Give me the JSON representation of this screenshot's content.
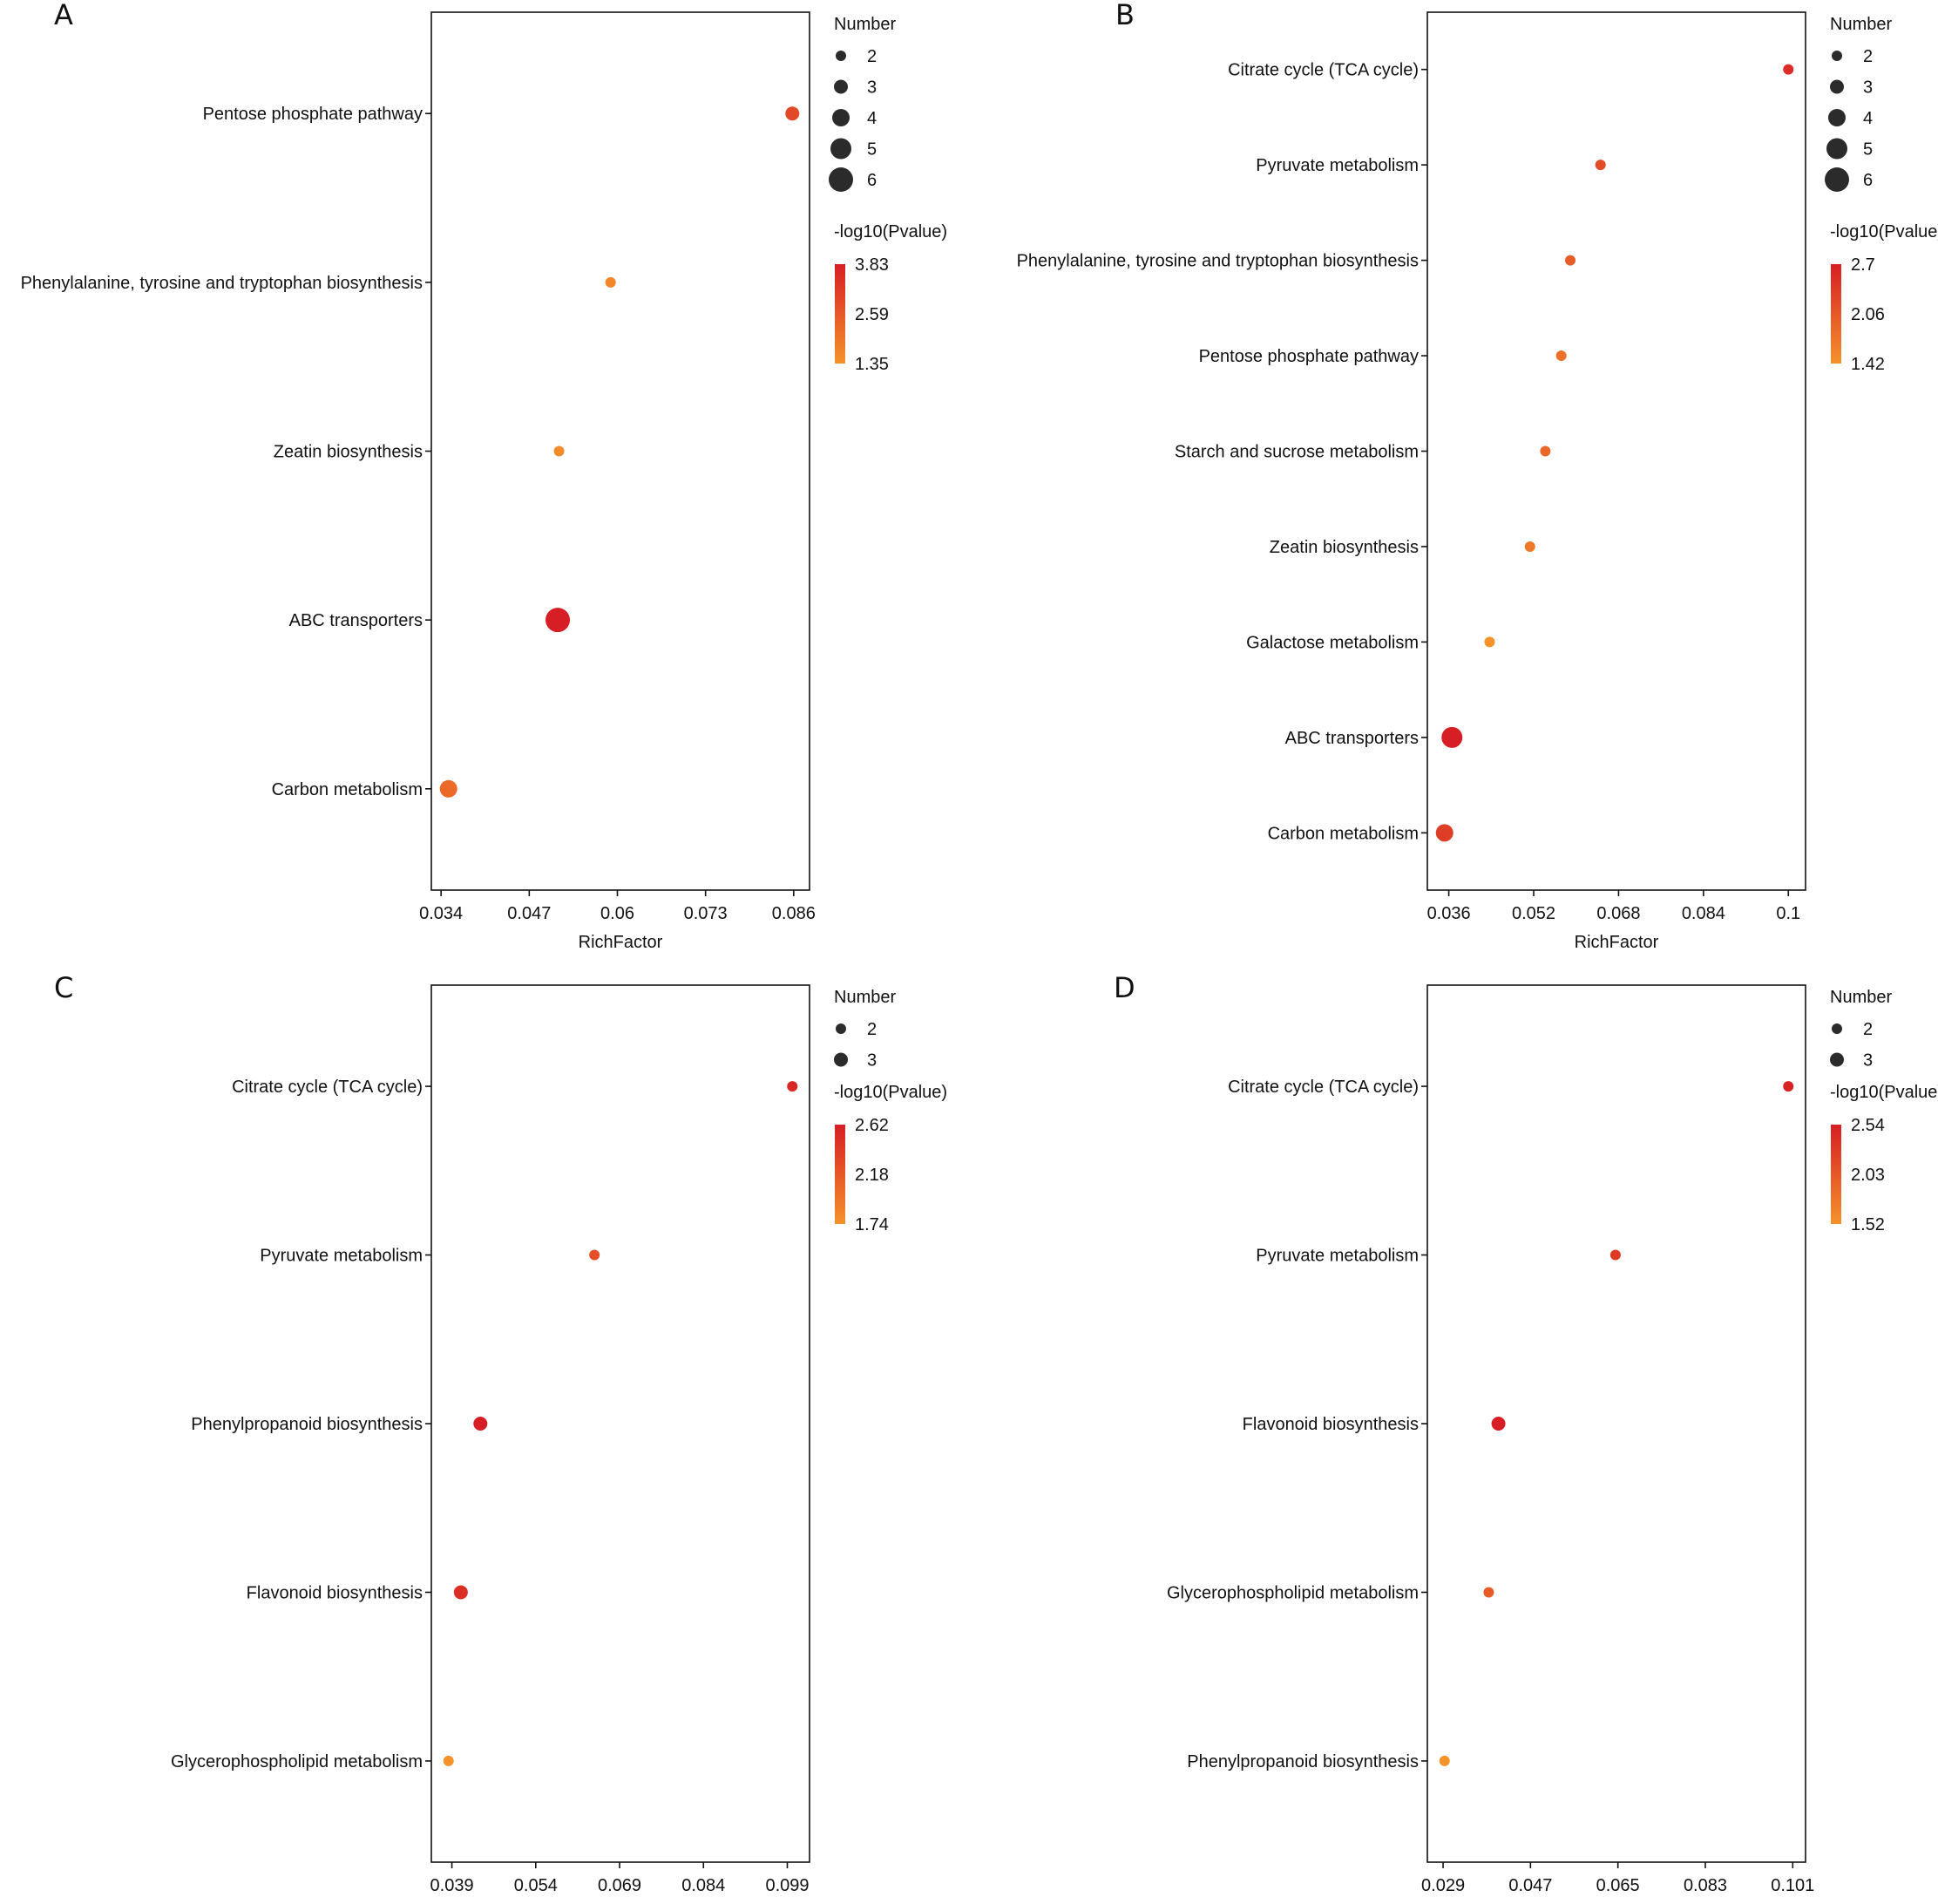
{
  "colors": {
    "low": "#F5922A",
    "high": "#D71E24",
    "size_legend": "#2b2b2b"
  },
  "chart_data": [
    {
      "panel": "A",
      "type": "scatter",
      "xlabel": "RichFactor",
      "size_title": "Number",
      "color_title": "-log10(Pvalue)",
      "categories": [
        "Pentose phosphate pathway",
        "Phenylalanine, tyrosine and tryptophan biosynthesis",
        "Zeatin biosynthesis",
        "ABC transporters",
        "Carbon metabolism"
      ],
      "rich_factor": [
        0.0858,
        0.059,
        0.0514,
        0.0512,
        0.0351
      ],
      "number": [
        3,
        2,
        2,
        6,
        4
      ],
      "neg_log10_p": [
        2.95,
        1.6,
        1.5,
        3.83,
        2.2
      ],
      "xticks": [
        "0.034",
        "0.047",
        "0.06",
        "0.073",
        "0.086"
      ],
      "size_legend": [
        "2",
        "3",
        "4",
        "5",
        "6"
      ],
      "color_range": [
        1.35,
        3.83
      ],
      "colorbar_labels": [
        "3.83",
        "2.59",
        "1.35"
      ]
    },
    {
      "panel": "B",
      "type": "scatter",
      "xlabel": "RichFactor",
      "size_title": "Number",
      "color_title": "-log10(Pvalue)",
      "categories": [
        "Citrate cycle (TCA cycle)",
        "Pyruvate metabolism",
        "Phenylalanine, tyrosine and tryptophan biosynthesis",
        "Pentose phosphate pathway",
        "Starch and sucrose metabolism",
        "Zeatin biosynthesis",
        "Galactose metabolism",
        "ABC transporters",
        "Carbon metabolism"
      ],
      "rich_factor": [
        0.1,
        0.0646,
        0.0589,
        0.0572,
        0.0542,
        0.0513,
        0.0437,
        0.0366,
        0.0352
      ],
      "number": [
        2,
        2,
        2,
        2,
        2,
        2,
        2,
        5,
        4
      ],
      "neg_log10_p": [
        2.55,
        2.2,
        2.0,
        1.8,
        1.9,
        1.7,
        1.42,
        2.7,
        2.35
      ],
      "xticks": [
        "0.036",
        "0.052",
        "0.068",
        "0.084",
        "0.1"
      ],
      "size_legend": [
        "2",
        "3",
        "4",
        "5",
        "6"
      ],
      "color_range": [
        1.42,
        2.7
      ],
      "colorbar_labels": [
        "2.7",
        "2.06",
        "1.42"
      ]
    },
    {
      "panel": "C",
      "type": "scatter",
      "xlabel": "RichFactor",
      "size_title": "Number",
      "color_title": "-log10(Pvalue)",
      "categories": [
        "Citrate cycle (TCA cycle)",
        "Pyruvate metabolism",
        "Phenylpropanoid biosynthesis",
        "Flavonoid biosynthesis",
        "Glycerophospholipid metabolism"
      ],
      "rich_factor": [
        0.0999,
        0.0645,
        0.0441,
        0.0406,
        0.0384
      ],
      "number": [
        2,
        2,
        3,
        3,
        2
      ],
      "neg_log10_p": [
        2.55,
        2.25,
        2.62,
        2.5,
        1.74
      ],
      "xticks": [
        "0.039",
        "0.054",
        "0.069",
        "0.084",
        "0.099"
      ],
      "size_legend": [
        "2",
        "3"
      ],
      "color_range": [
        1.74,
        2.62
      ],
      "colorbar_labels": [
        "2.62",
        "2.18",
        "1.74"
      ]
    },
    {
      "panel": "D",
      "type": "scatter",
      "xlabel": "RichFactor",
      "size_title": "Number",
      "color_title": "-log10(Pvalue)",
      "categories": [
        "Citrate cycle (TCA cycle)",
        "Pyruvate metabolism",
        "Flavonoid biosynthesis",
        "Glycerophospholipid metabolism",
        "Phenylpropanoid biosynthesis"
      ],
      "rich_factor": [
        0.1001,
        0.0645,
        0.0404,
        0.0384,
        0.0293
      ],
      "number": [
        2,
        2,
        3,
        2,
        2
      ],
      "neg_log10_p": [
        2.5,
        2.3,
        2.54,
        2.0,
        1.52
      ],
      "xticks": [
        "0.029",
        "0.047",
        "0.065",
        "0.083",
        "0.101"
      ],
      "size_legend": [
        "2",
        "3"
      ],
      "color_range": [
        1.52,
        2.54
      ],
      "colorbar_labels": [
        "2.54",
        "2.03",
        "1.52"
      ]
    }
  ]
}
